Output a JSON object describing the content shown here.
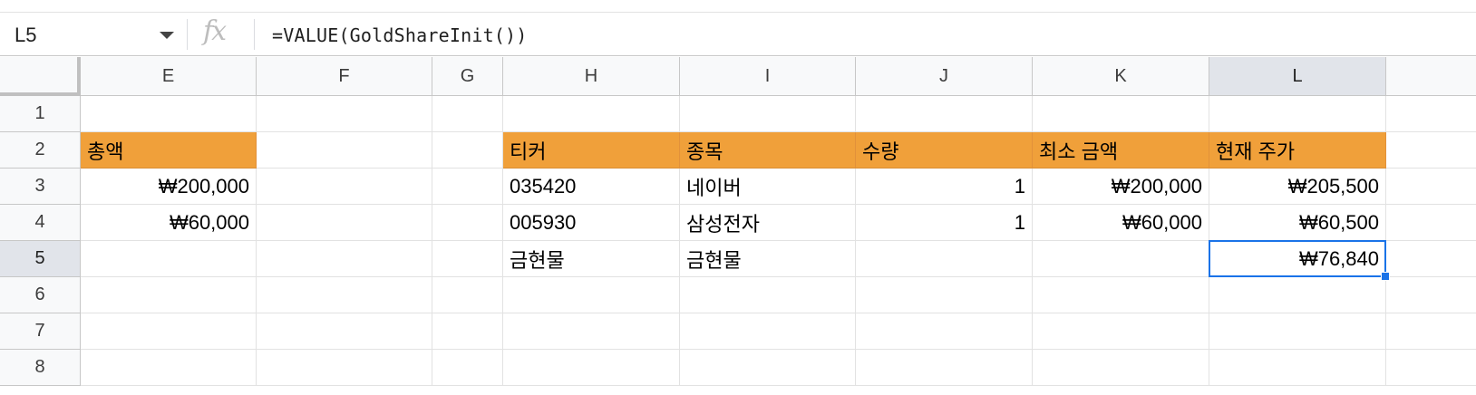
{
  "formula_bar": {
    "name_box": "L5",
    "fx_label": "fx",
    "formula": "=VALUE(GoldShareInit())"
  },
  "columns": [
    "E",
    "F",
    "G",
    "H",
    "I",
    "J",
    "K",
    "L"
  ],
  "rows": [
    "1",
    "2",
    "3",
    "4",
    "5",
    "6",
    "7",
    "8"
  ],
  "selected_cell": "L5",
  "colors": {
    "header_fill": "#f0a03a",
    "selection": "#1a73e8"
  },
  "cells": {
    "E2": "총액",
    "E3": "₩200,000",
    "E4": "₩60,000",
    "H2": "티커",
    "I2": "종목",
    "J2": "수량",
    "K2": "최소 금액",
    "L2": "현재 주가",
    "H3": "035420",
    "I3": "네이버",
    "J3": "1",
    "K3": "₩200,000",
    "L3": "₩205,500",
    "H4": "005930",
    "I4": "삼성전자",
    "J4": "1",
    "K4": "₩60,000",
    "L4": "₩60,500",
    "H5": "금현물",
    "I5": "금현물",
    "L5": "₩76,840"
  }
}
